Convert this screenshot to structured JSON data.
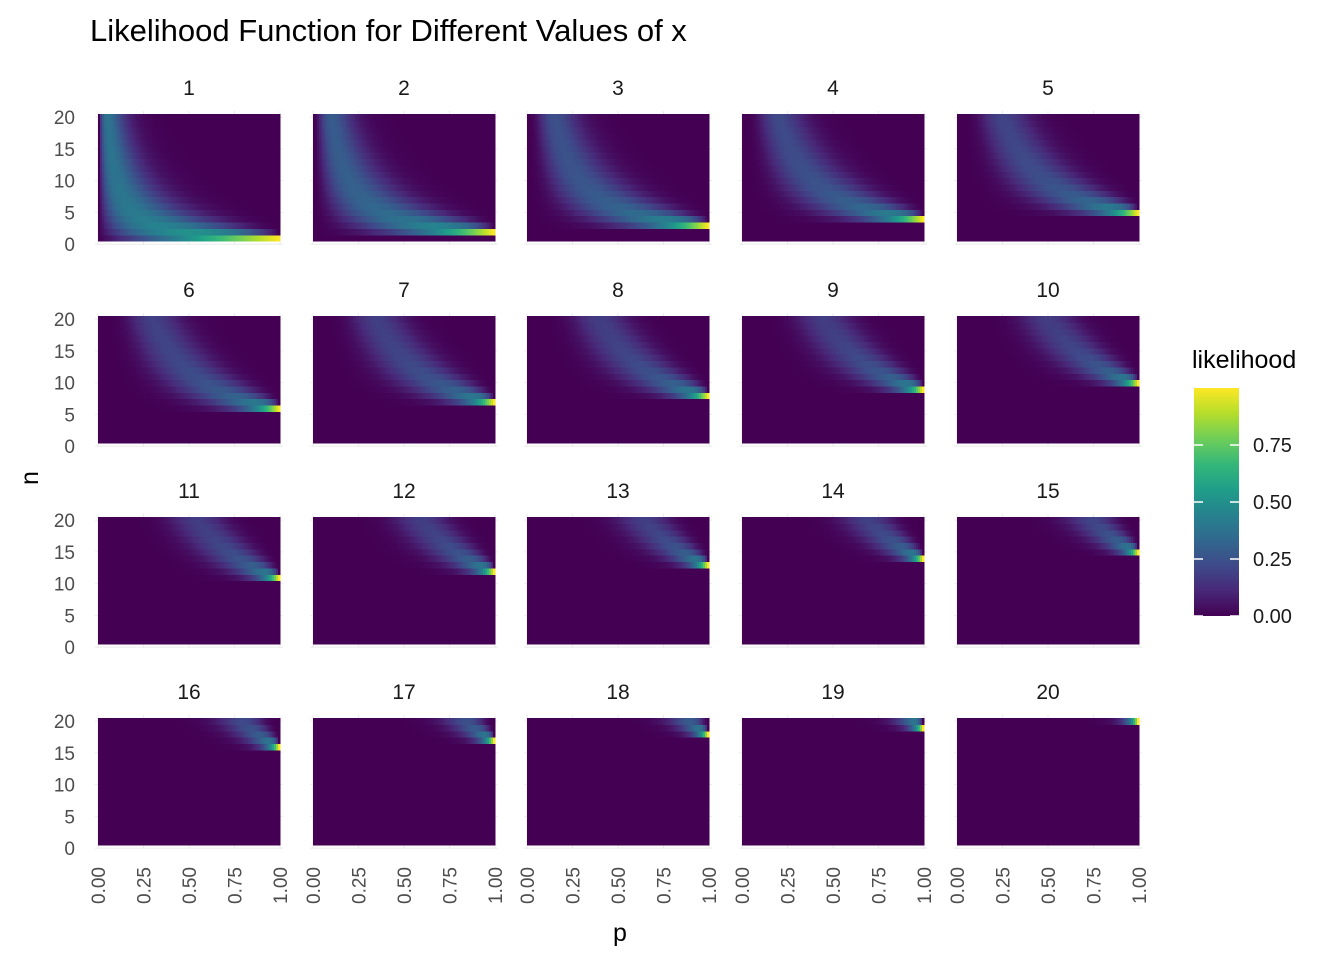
{
  "chart_data": {
    "type": "heatmap",
    "title": "Likelihood Function for Different Values of x",
    "xlabel": "p",
    "ylabel": "n",
    "facet_labels": [
      "1",
      "2",
      "3",
      "4",
      "5",
      "6",
      "7",
      "8",
      "9",
      "10",
      "11",
      "12",
      "13",
      "14",
      "15",
      "16",
      "17",
      "18",
      "19",
      "20"
    ],
    "facet_variable": "x",
    "x_range": [
      0,
      1
    ],
    "y_range": [
      1,
      20
    ],
    "x_ticks": [
      "0.00",
      "0.25",
      "0.50",
      "0.75",
      "1.00"
    ],
    "y_ticks": [
      "0",
      "5",
      "10",
      "15",
      "20"
    ],
    "x_tick_values": [
      0,
      0.25,
      0.5,
      0.75,
      1.0
    ],
    "y_tick_values": [
      0,
      5,
      10,
      15,
      20
    ],
    "value_function": "binomial likelihood C(n,x) p^x (1-p)^(n-x); zero when n < x",
    "grid": "minimal",
    "legend": {
      "title": "likelihood",
      "position": "right",
      "ticks": [
        "0.00",
        "0.25",
        "0.50",
        "0.75"
      ],
      "tick_values": [
        0,
        0.25,
        0.5,
        0.75
      ],
      "range": [
        0,
        1
      ],
      "colormap": "viridis"
    }
  }
}
